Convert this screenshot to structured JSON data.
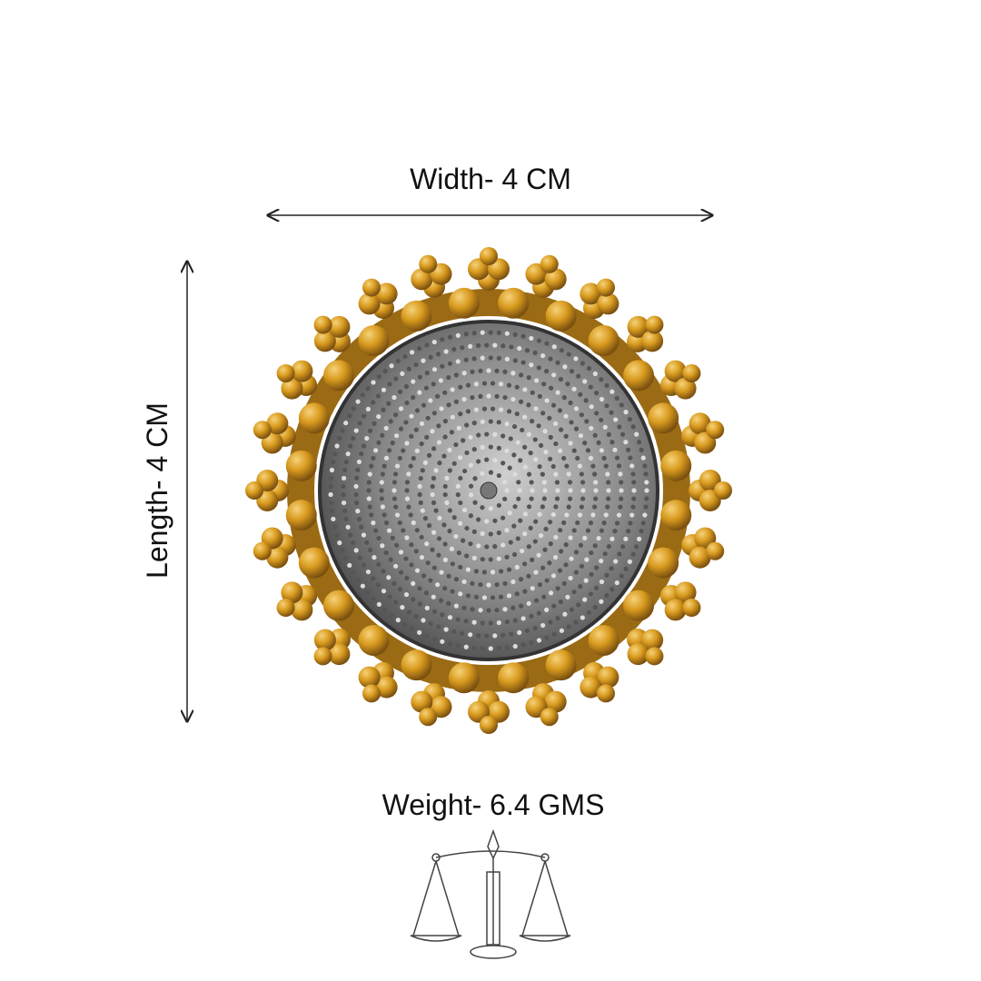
{
  "dimensions": {
    "width": "Width- 4 CM",
    "length": "Length- 4 CM",
    "weight": "Weight- 6.4 GMS"
  }
}
